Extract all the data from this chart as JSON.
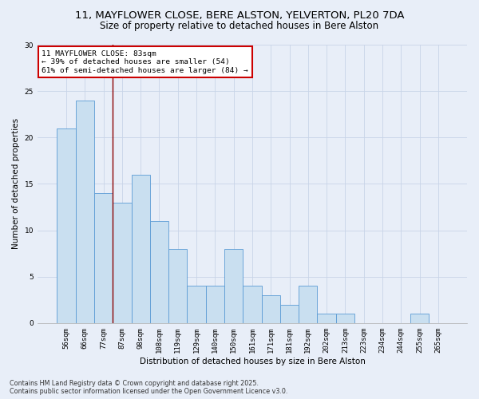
{
  "title_line1": "11, MAYFLOWER CLOSE, BERE ALSTON, YELVERTON, PL20 7DA",
  "title_line2": "Size of property relative to detached houses in Bere Alston",
  "xlabel": "Distribution of detached houses by size in Bere Alston",
  "ylabel": "Number of detached properties",
  "categories": [
    "56sqm",
    "66sqm",
    "77sqm",
    "87sqm",
    "98sqm",
    "108sqm",
    "119sqm",
    "129sqm",
    "140sqm",
    "150sqm",
    "161sqm",
    "171sqm",
    "181sqm",
    "192sqm",
    "202sqm",
    "213sqm",
    "223sqm",
    "234sqm",
    "244sqm",
    "255sqm",
    "265sqm"
  ],
  "values": [
    21,
    24,
    14,
    13,
    16,
    11,
    8,
    4,
    4,
    8,
    4,
    3,
    2,
    4,
    1,
    1,
    0,
    0,
    0,
    1,
    0
  ],
  "bar_color": "#c9dff0",
  "bar_edge_color": "#5b9bd5",
  "vline_x_index": 2.5,
  "vline_color": "#8b0000",
  "annotation_text": "11 MAYFLOWER CLOSE: 83sqm\n← 39% of detached houses are smaller (54)\n61% of semi-detached houses are larger (84) →",
  "annotation_box_color": "white",
  "annotation_box_edge_color": "#cc0000",
  "ylim": [
    0,
    30
  ],
  "yticks": [
    0,
    5,
    10,
    15,
    20,
    25,
    30
  ],
  "grid_color": "#c8d4e8",
  "background_color": "#e8eef8",
  "footer_line1": "Contains HM Land Registry data © Crown copyright and database right 2025.",
  "footer_line2": "Contains public sector information licensed under the Open Government Licence v3.0.",
  "title_fontsize": 9.5,
  "subtitle_fontsize": 8.5,
  "axis_label_fontsize": 7.5,
  "tick_fontsize": 6.5,
  "annotation_fontsize": 6.8,
  "footer_fontsize": 5.8
}
